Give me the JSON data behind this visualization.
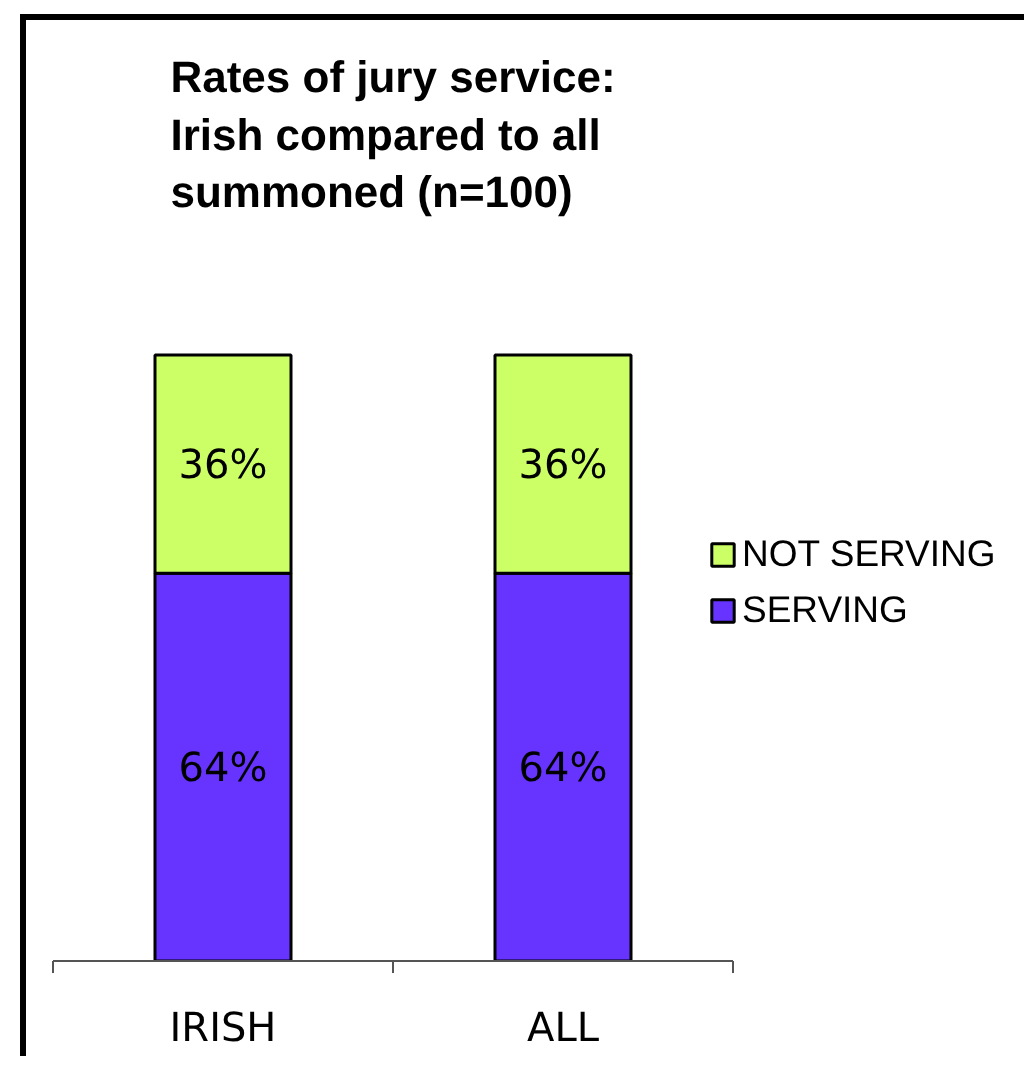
{
  "chart_data": {
    "type": "bar",
    "title": "Rates of jury service: Irish compared to all summoned (n=100)",
    "categories": [
      "IRISH",
      "ALL"
    ],
    "stacked": true,
    "series": [
      {
        "name": "SERVING",
        "color": "#6633ff",
        "values": [
          64,
          64
        ],
        "value_labels": [
          "64%",
          "64%"
        ]
      },
      {
        "name": "NOT SERVING",
        "color": "#ccff66",
        "values": [
          36,
          36
        ],
        "value_labels": [
          "36%",
          "36%"
        ]
      }
    ],
    "legend": "right",
    "grid": false
  }
}
